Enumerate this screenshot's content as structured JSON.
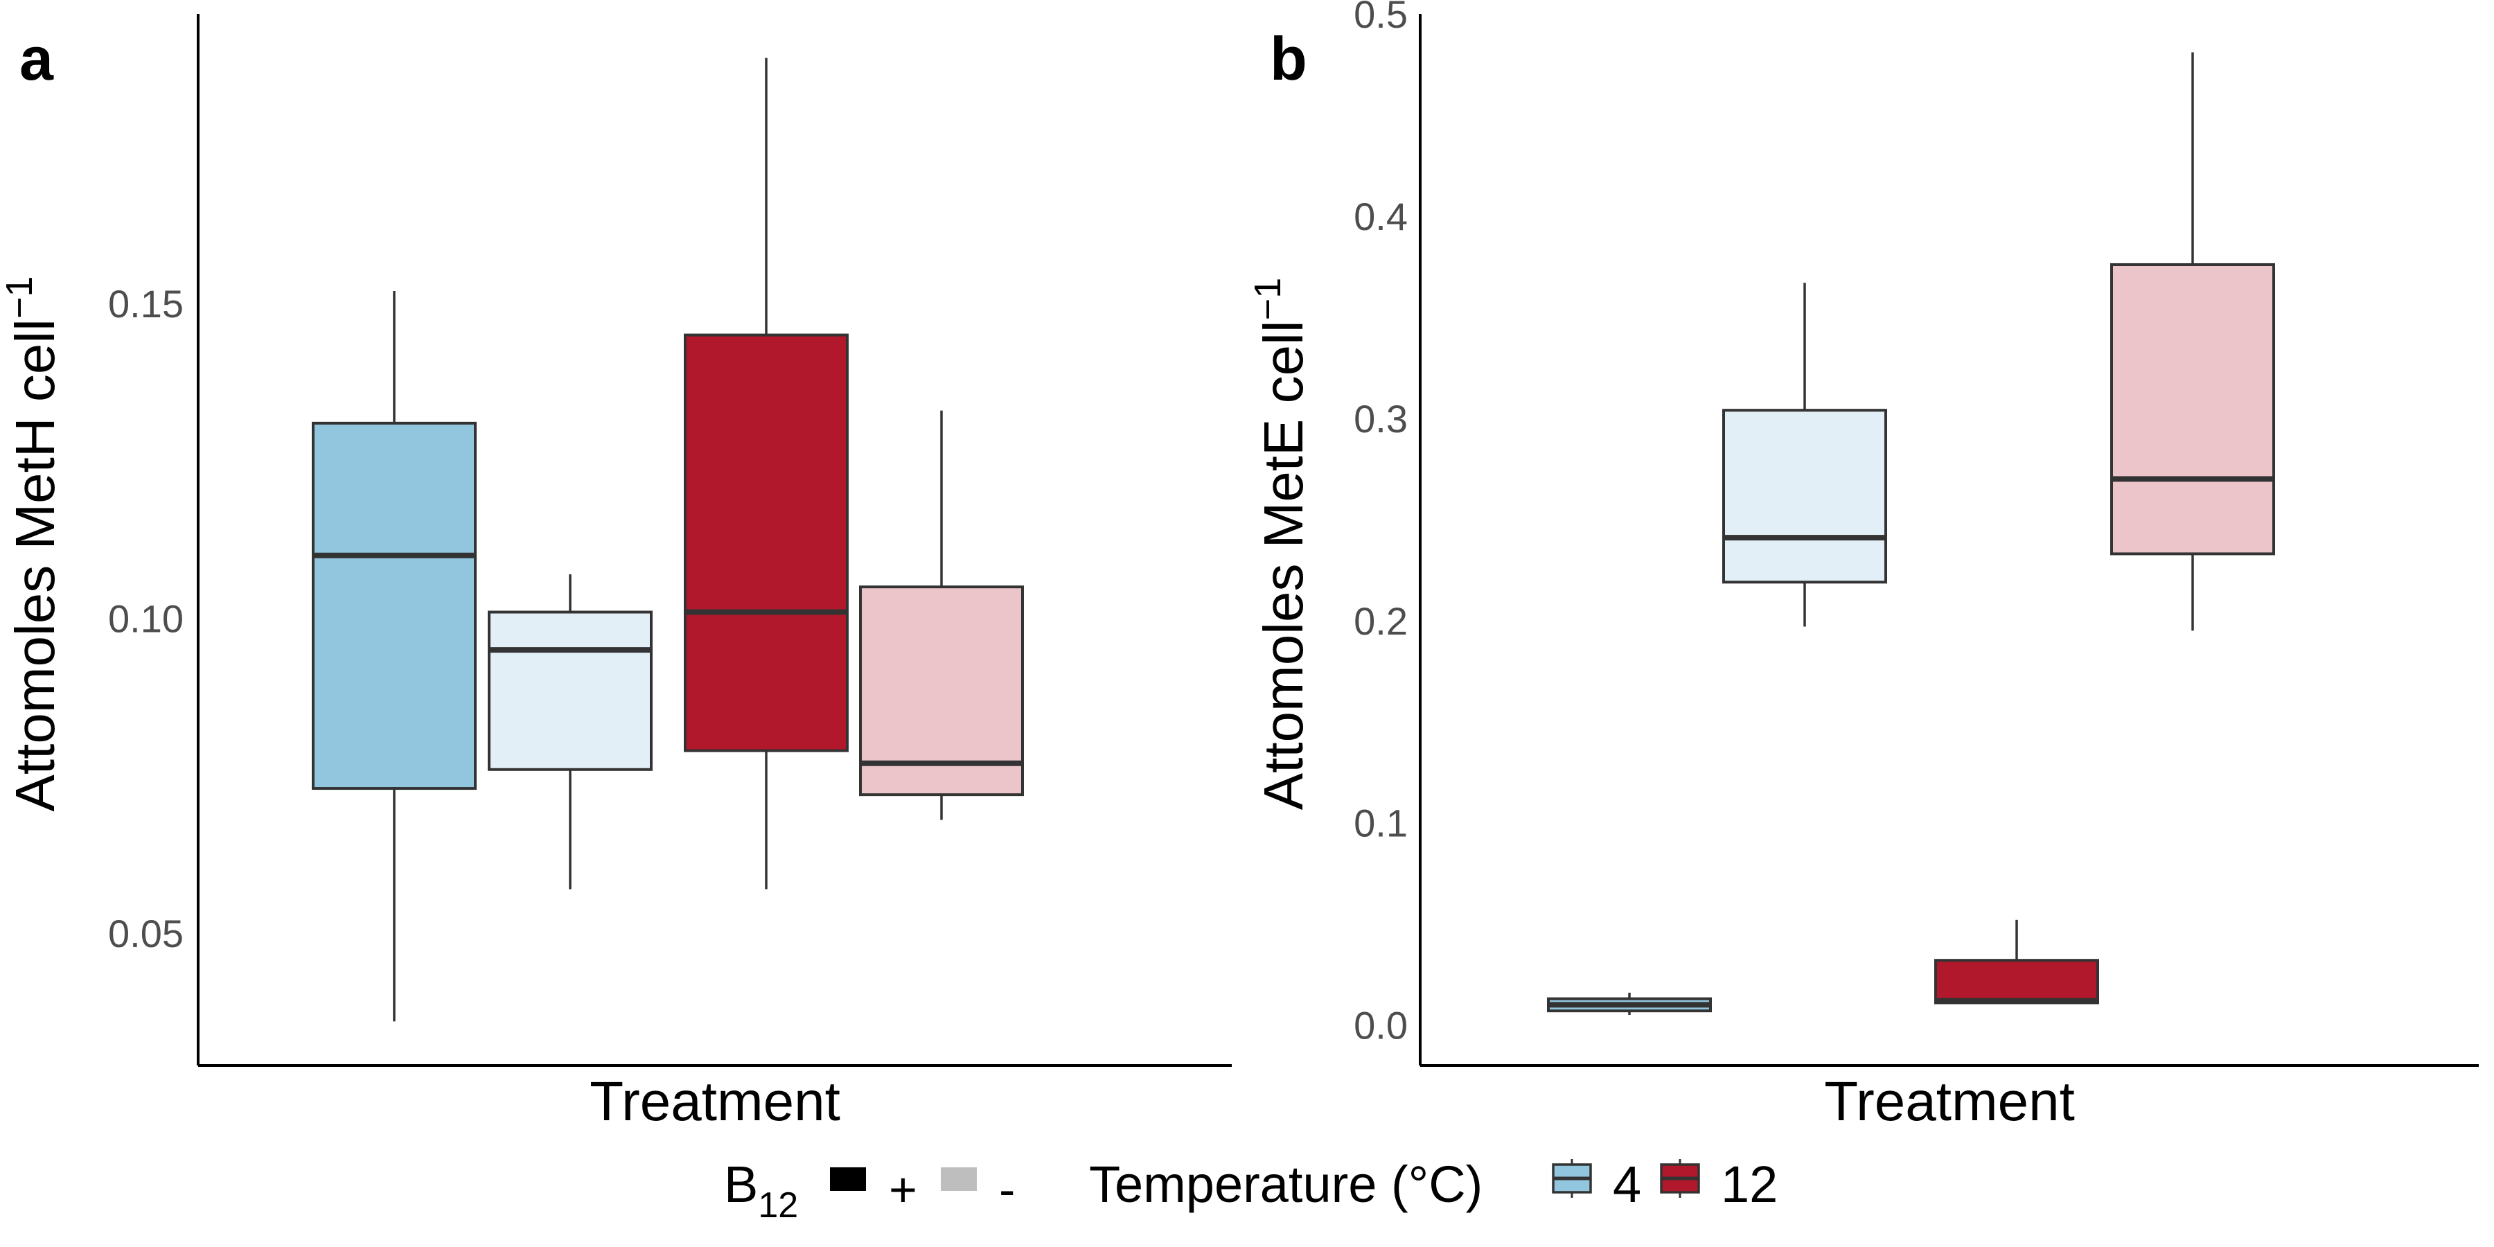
{
  "chart_data": [
    {
      "type": "boxplot",
      "panel_label": "a",
      "xlabel": "Treatment",
      "ylabel": "Attomoles MetH cell",
      "ylabel_superscript": "−1",
      "ylim": [
        0.029,
        0.196
      ],
      "yticks": [
        0.05,
        0.1,
        0.15
      ],
      "ytick_labels": [
        "0.05",
        "0.10",
        "0.15"
      ],
      "boxes": [
        {
          "temperature": "4",
          "b12": "+",
          "whisker_low": 0.036,
          "q1": 0.073,
          "median": 0.11,
          "q3": 0.131,
          "whisker_high": 0.152
        },
        {
          "temperature": "4",
          "b12": "-",
          "whisker_low": 0.057,
          "q1": 0.076,
          "median": 0.095,
          "q3": 0.101,
          "whisker_high": 0.107
        },
        {
          "temperature": "12",
          "b12": "+",
          "whisker_low": 0.057,
          "q1": 0.079,
          "median": 0.101,
          "q3": 0.145,
          "whisker_high": 0.189
        },
        {
          "temperature": "12",
          "b12": "-",
          "whisker_low": 0.068,
          "q1": 0.072,
          "median": 0.077,
          "q3": 0.105,
          "whisker_high": 0.133
        }
      ]
    },
    {
      "type": "boxplot",
      "panel_label": "b",
      "xlabel": "Treatment",
      "ylabel": "Attomoles MetE cell",
      "ylabel_superscript": "−1",
      "ylim": [
        -0.02,
        0.5
      ],
      "yticks": [
        0.0,
        0.1,
        0.2,
        0.3,
        0.4,
        0.5
      ],
      "ytick_labels": [
        "0.0",
        "0.1",
        "0.2",
        "0.3",
        "0.4",
        "0.5"
      ],
      "boxes": [
        {
          "temperature": "4",
          "b12": "+",
          "whisker_low": 0.005,
          "q1": 0.007,
          "median": 0.01,
          "q3": 0.013,
          "whisker_high": 0.016
        },
        {
          "temperature": "4",
          "b12": "-",
          "whisker_low": 0.197,
          "q1": 0.219,
          "median": 0.241,
          "q3": 0.304,
          "whisker_high": 0.367
        },
        {
          "temperature": "12",
          "b12": "+",
          "whisker_low": 0.011,
          "q1": 0.011,
          "median": 0.012,
          "q3": 0.032,
          "whisker_high": 0.052
        },
        {
          "temperature": "12",
          "b12": "-",
          "whisker_low": 0.195,
          "q1": 0.233,
          "median": 0.27,
          "q3": 0.376,
          "whisker_high": 0.481
        }
      ]
    }
  ],
  "colors": {
    "4": {
      "+": "#92c5de",
      "-": "#e3eff7"
    },
    "12": {
      "+": "#b2182b",
      "-": "#ebc5ca"
    },
    "box_stroke": "#333333",
    "axis": "#000000",
    "b12_present": "#000000",
    "b12_absent": "#bebebe"
  },
  "legend": {
    "b12_title": "B",
    "b12_title_subscript": "12",
    "b12_items": [
      {
        "label": "+",
        "color": "#000000"
      },
      {
        "label": "-",
        "color": "#bebebe"
      }
    ],
    "temperature_title": "Temperature (°C)",
    "temperature_items": [
      {
        "label": "4",
        "color": "#92c5de"
      },
      {
        "label": "12",
        "color": "#b2182b"
      }
    ]
  }
}
